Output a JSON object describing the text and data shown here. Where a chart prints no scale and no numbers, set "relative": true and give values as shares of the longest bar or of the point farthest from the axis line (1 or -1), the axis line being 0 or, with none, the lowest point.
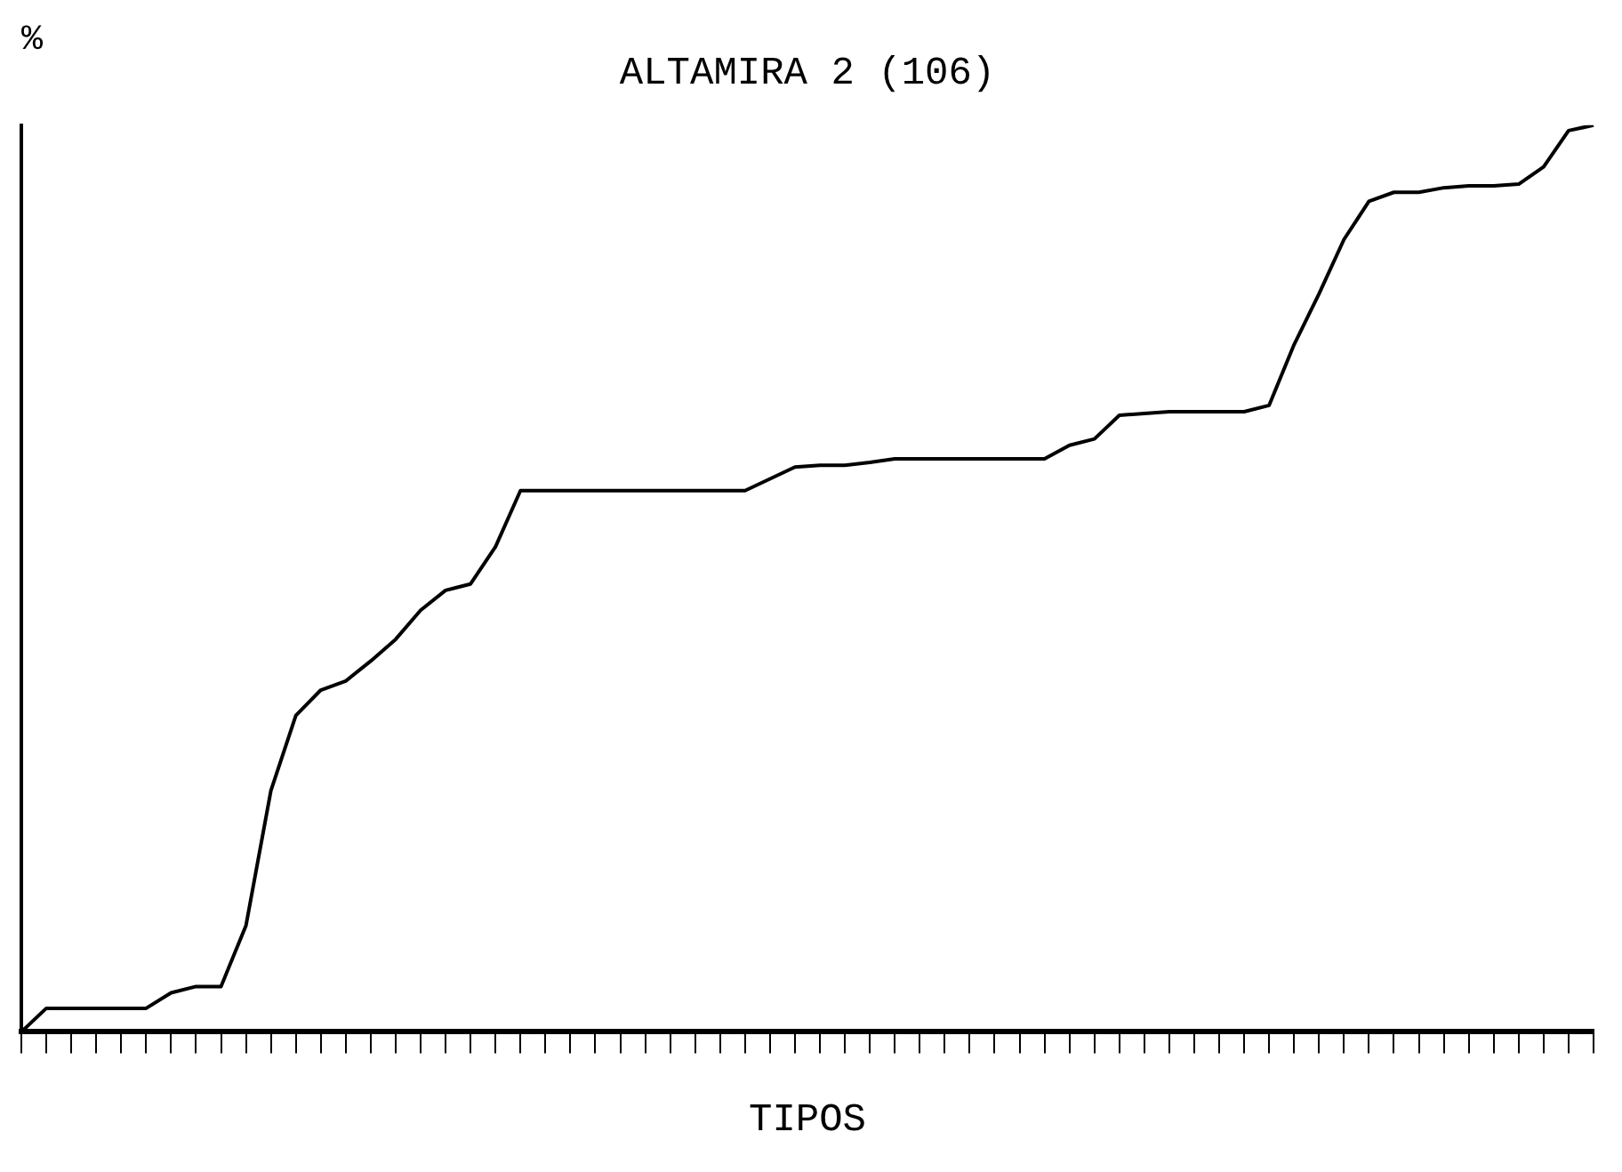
{
  "chart_data": {
    "type": "line",
    "title": "ALTAMIRA 2 (106)",
    "xlabel": "TIPOS",
    "ylabel": "%",
    "relative": true,
    "grid": false,
    "legend": false,
    "marker": "none",
    "line_style": "solid",
    "categories": [
      null,
      null,
      null,
      null,
      null,
      null,
      null,
      null,
      null,
      null,
      null,
      null,
      null,
      null,
      null,
      null,
      null,
      null,
      null,
      null,
      null,
      null,
      null,
      null,
      null,
      null,
      null,
      null,
      null,
      null,
      null,
      null,
      null,
      null,
      null,
      null,
      null,
      null,
      null,
      null,
      null,
      null,
      null,
      null,
      null,
      null,
      null,
      null,
      null,
      null,
      null,
      null,
      null,
      null,
      null,
      null,
      null,
      null,
      null,
      null,
      null,
      null,
      null,
      null
    ],
    "series": [
      {
        "color": "#000000",
        "values": [
          0,
          0.026,
          0.026,
          0.026,
          0.026,
          0.026,
          0.043,
          0.05,
          0.05,
          0.117,
          0.266,
          0.349,
          0.377,
          0.387,
          0.409,
          0.433,
          0.465,
          0.487,
          0.494,
          0.535,
          0.597,
          0.597,
          0.597,
          0.597,
          0.597,
          0.597,
          0.597,
          0.597,
          0.597,
          0.597,
          0.61,
          0.623,
          0.625,
          0.625,
          0.628,
          0.632,
          0.632,
          0.632,
          0.632,
          0.632,
          0.632,
          0.632,
          0.647,
          0.654,
          0.68,
          0.682,
          0.684,
          0.684,
          0.684,
          0.684,
          0.691,
          0.758,
          0.814,
          0.874,
          0.916,
          0.926,
          0.926,
          0.931,
          0.933,
          0.933,
          0.935,
          0.954,
          0.994,
          1
        ]
      }
    ]
  }
}
